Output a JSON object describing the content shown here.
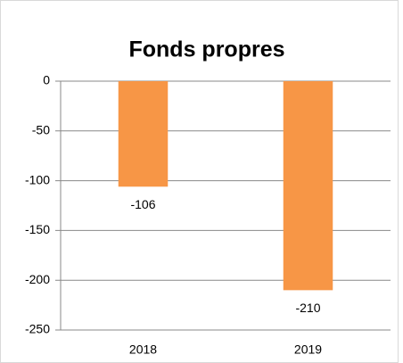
{
  "chart_data": {
    "type": "bar",
    "title": "Fonds propres",
    "categories": [
      "2018",
      "2019"
    ],
    "values": [
      -106,
      -210
    ],
    "color": "#f79646",
    "ylim": [
      -250,
      0
    ],
    "yticks": [
      0,
      -50,
      -100,
      -150,
      -200,
      -250
    ],
    "grid": true,
    "data_labels": true
  }
}
